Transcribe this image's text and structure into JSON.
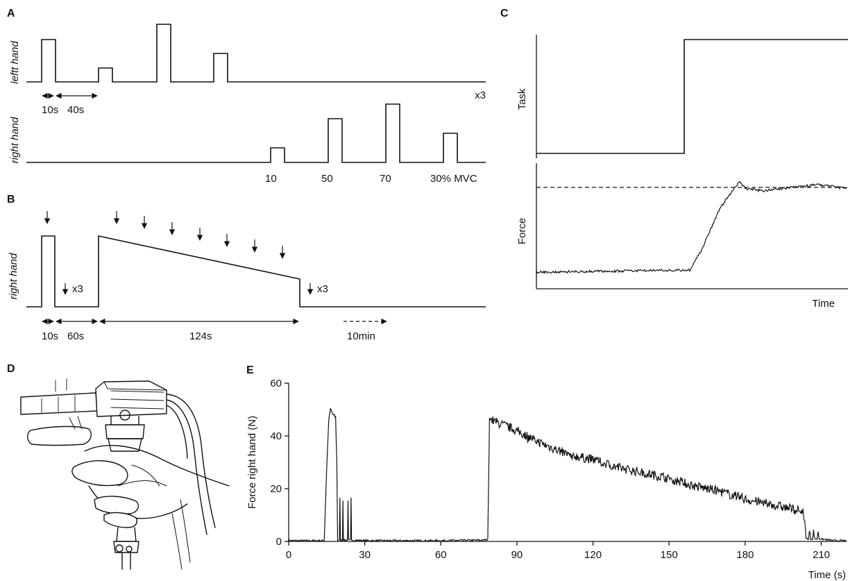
{
  "panels": {
    "a": {
      "label": "A",
      "left_hand_label": "leftt hand",
      "right_hand_label": "right hand",
      "dur_short": "10s",
      "dur_rest": "40s",
      "repeat": "x3",
      "levels": [
        "10",
        "50",
        "70",
        "30% MVC"
      ]
    },
    "b": {
      "label": "B",
      "right_hand_label": "right hand",
      "repeat_1": "x3",
      "repeat_2": "x3",
      "dur_1": "10s",
      "dur_2": "60s",
      "dur_3": "124s",
      "dur_4": "10min"
    },
    "c": {
      "label": "C",
      "task_label": "Task",
      "force_label": "Force",
      "time_label": "Time"
    },
    "d": {
      "label": "D"
    },
    "e": {
      "label": "E"
    }
  },
  "chart_data": {
    "type": "line",
    "xlabel": "Time (s)",
    "ylabel": "Force right hand (N)",
    "xlim": [
      0,
      220
    ],
    "ylim": [
      0,
      60
    ],
    "xticks": [
      0,
      30,
      60,
      90,
      120,
      150,
      180,
      210
    ],
    "yticks": [
      0,
      20,
      40,
      60
    ],
    "series": [
      {
        "values": [
          [
            0,
            0.3
          ],
          [
            14,
            0.3
          ],
          [
            15,
            28
          ],
          [
            15.8,
            46
          ],
          [
            16.5,
            50
          ],
          [
            17.5,
            48
          ],
          [
            18.5,
            47
          ],
          [
            19,
            30
          ],
          [
            19.3,
            0.5
          ],
          [
            20,
            0.5
          ],
          [
            20.2,
            16
          ],
          [
            20.4,
            0.5
          ],
          [
            21.2,
            0.5
          ],
          [
            21.4,
            16
          ],
          [
            21.6,
            0.5
          ],
          [
            23.2,
            0.5
          ],
          [
            23.4,
            16
          ],
          [
            23.6,
            0.5
          ],
          [
            24.4,
            0.5
          ],
          [
            24.6,
            16
          ],
          [
            24.8,
            0.5
          ],
          [
            30,
            0.3
          ],
          [
            60,
            0.3
          ],
          [
            77,
            0.5
          ],
          [
            78.5,
            0.7
          ],
          [
            79.2,
            47
          ],
          [
            80,
            46
          ],
          [
            90,
            42
          ],
          [
            100,
            37
          ],
          [
            110,
            33
          ],
          [
            120,
            31
          ],
          [
            130,
            28
          ],
          [
            140,
            26
          ],
          [
            150,
            24
          ],
          [
            160,
            21
          ],
          [
            170,
            19
          ],
          [
            180,
            16
          ],
          [
            190,
            14
          ],
          [
            200,
            12
          ],
          [
            203,
            11.5
          ],
          [
            204,
            1
          ],
          [
            205,
            1
          ],
          [
            205.4,
            4
          ],
          [
            205.8,
            1
          ],
          [
            206.6,
            1
          ],
          [
            207,
            4
          ],
          [
            207.4,
            1
          ],
          [
            208.4,
            1
          ],
          [
            208.8,
            4
          ],
          [
            209.2,
            1
          ],
          [
            215,
            0.3
          ],
          [
            220,
            0.3
          ]
        ]
      }
    ]
  }
}
